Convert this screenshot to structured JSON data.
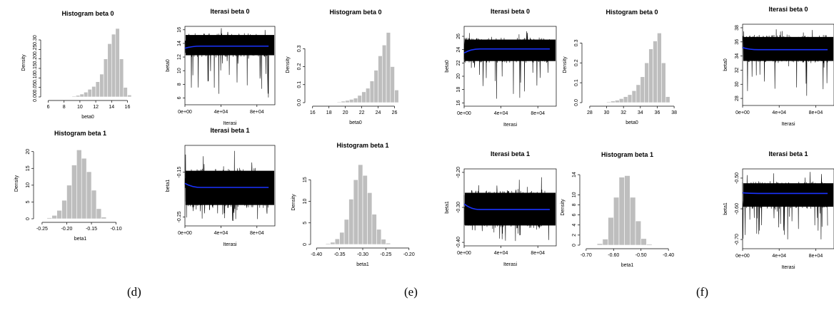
{
  "panel_labels": [
    "(d)",
    "(e)",
    "(f)"
  ],
  "chart_data": [
    {
      "group": "d",
      "kind": "hist",
      "type": "bar",
      "title": "Histogram beta 0",
      "xlabel": "beta0",
      "ylabel": "Density",
      "xlim": [
        5.5,
        16.5
      ],
      "ylim": [
        0,
        0.36
      ],
      "xticks": [
        6,
        8,
        10,
        12,
        14,
        16
      ],
      "yticks": [
        0,
        0.05,
        0.1,
        0.15,
        0.2,
        0.25,
        0.3
      ],
      "ytick_labels": [
        "0.00",
        "0.05",
        "0.10",
        "0.15",
        "0.20",
        "0.25",
        "0.30"
      ],
      "bin_width": 0.5,
      "bins": [
        8.5,
        9,
        9.5,
        10,
        10.5,
        11,
        11.5,
        12,
        12.5,
        13,
        13.5,
        14,
        14.5,
        15,
        15.5,
        16
      ],
      "values": [
        0.002,
        0.004,
        0.008,
        0.015,
        0.025,
        0.04,
        0.055,
        0.08,
        0.12,
        0.2,
        0.28,
        0.33,
        0.36,
        0.2,
        0.05,
        0.01
      ]
    },
    {
      "group": "d",
      "kind": "trace",
      "type": "line",
      "title": "Iterasi beta 0",
      "xlabel": "Iterasi",
      "ylabel": "beta0",
      "xlim": [
        0,
        100000
      ],
      "ylim": [
        5,
        16.5
      ],
      "xticks": [
        0,
        40000,
        80000
      ],
      "xtick_labels": [
        "0e+00",
        "4e+04",
        "8e+04"
      ],
      "yticks": [
        6,
        8,
        10,
        12,
        14,
        16
      ],
      "ytick_labels": [
        "6",
        "8",
        "10",
        "12",
        "14",
        "16"
      ],
      "band": [
        12,
        15.5
      ],
      "spike_low": 6,
      "spike_high": 16.3,
      "mean_start": 13.3,
      "mean": 13.6
    },
    {
      "group": "d",
      "kind": "hist",
      "type": "bar",
      "title": "Histogram beta 1",
      "xlabel": "beta1",
      "ylabel": "Density",
      "xlim": [
        -0.26,
        -0.085
      ],
      "ylim": [
        0,
        21
      ],
      "xticks": [
        -0.25,
        -0.2,
        -0.15,
        -0.1
      ],
      "xtick_labels": [
        "-0.25",
        "-0.20",
        "-0.15",
        "-0.10"
      ],
      "yticks": [
        0,
        5,
        10,
        15,
        20
      ],
      "ytick_labels": [
        "0",
        "5",
        "10",
        "15",
        "20"
      ],
      "bin_width": 0.01,
      "bins": [
        -0.24,
        -0.23,
        -0.22,
        -0.21,
        -0.2,
        -0.19,
        -0.18,
        -0.17,
        -0.16,
        -0.15,
        -0.14,
        -0.13
      ],
      "values": [
        0.3,
        1.0,
        2.5,
        5.5,
        10,
        16,
        20.5,
        18,
        14,
        8.5,
        3,
        0.5
      ]
    },
    {
      "group": "d",
      "kind": "trace",
      "type": "line",
      "title": "Iterasi beta 1",
      "xlabel": "Iterasi",
      "ylabel": "beta1",
      "xlim": [
        0,
        100000
      ],
      "ylim": [
        -0.27,
        -0.09
      ],
      "xticks": [
        0,
        40000,
        80000
      ],
      "xtick_labels": [
        "0e+00",
        "4e+04",
        "8e+04"
      ],
      "yticks": [
        -0.25,
        -0.15
      ],
      "ytick_labels": [
        "-0.25",
        "-0.15"
      ],
      "band": [
        -0.23,
        -0.14
      ],
      "spike_low": -0.26,
      "spike_high": -0.1,
      "mean_start": -0.175,
      "mean": -0.184
    },
    {
      "group": "e",
      "kind": "hist",
      "type": "bar",
      "title": "Histogram beta 0",
      "xlabel": "beta0",
      "ylabel": "Density",
      "xlim": [
        15.5,
        27
      ],
      "ylim": [
        0,
        0.42
      ],
      "xticks": [
        16,
        18,
        20,
        22,
        24,
        26
      ],
      "yticks": [
        0,
        0.1,
        0.2,
        0.3
      ],
      "ytick_labels": [
        "0.0",
        "0.1",
        "0.2",
        "0.3"
      ],
      "bin_width": 0.5,
      "bins": [
        19,
        19.5,
        20,
        20.5,
        21,
        21.5,
        22,
        22.5,
        23,
        23.5,
        24,
        24.5,
        25,
        25.5,
        26
      ],
      "values": [
        0.004,
        0.008,
        0.012,
        0.018,
        0.025,
        0.04,
        0.06,
        0.08,
        0.12,
        0.18,
        0.26,
        0.32,
        0.39,
        0.2,
        0.07
      ]
    },
    {
      "group": "e",
      "kind": "trace",
      "type": "line",
      "title": "Iterasi beta 0",
      "xlabel": "Iterasi",
      "ylabel": "beta0",
      "xlim": [
        0,
        100000
      ],
      "ylim": [
        15.5,
        27.5
      ],
      "xticks": [
        0,
        40000,
        80000
      ],
      "xtick_labels": [
        "0e+00",
        "4e+04",
        "8e+04"
      ],
      "yticks": [
        16,
        18,
        20,
        22,
        24,
        26
      ],
      "ytick_labels": [
        "16",
        "18",
        "20",
        "22",
        "24",
        "26"
      ],
      "band": [
        22,
        25.8
      ],
      "spike_low": 16.5,
      "spike_high": 26.8,
      "mean_start": 23.5,
      "mean": 24.1
    },
    {
      "group": "e",
      "kind": "hist",
      "type": "bar",
      "title": "Histogram beta 1",
      "xlabel": "beta1",
      "ylabel": "Density",
      "xlim": [
        -0.405,
        -0.195
      ],
      "ylim": [
        0,
        19.5
      ],
      "xticks": [
        -0.4,
        -0.35,
        -0.3,
        -0.25,
        -0.2
      ],
      "xtick_labels": [
        "-0.40",
        "-0.35",
        "-0.30",
        "-0.25",
        "-0.20"
      ],
      "yticks": [
        0,
        5,
        10,
        15
      ],
      "ytick_labels": [
        "0",
        "5",
        "10",
        "15"
      ],
      "bin_width": 0.01,
      "bins": [
        -0.38,
        -0.37,
        -0.36,
        -0.35,
        -0.34,
        -0.33,
        -0.32,
        -0.31,
        -0.3,
        -0.29,
        -0.28,
        -0.27,
        -0.26,
        -0.25
      ],
      "values": [
        0.2,
        0.5,
        1.3,
        2.8,
        5.8,
        10.5,
        15,
        18.5,
        16,
        12,
        7,
        3.5,
        1.2,
        0.3
      ]
    },
    {
      "group": "e",
      "kind": "trace",
      "type": "line",
      "title": "Iterasi beta 1",
      "xlabel": "Iterasi",
      "ylabel": "beta1",
      "xlim": [
        0,
        100000
      ],
      "ylim": [
        -0.41,
        -0.19
      ],
      "xticks": [
        0,
        40000,
        80000
      ],
      "xtick_labels": [
        "0e+00",
        "4e+04",
        "8e+04"
      ],
      "yticks": [
        -0.4,
        -0.3,
        -0.2
      ],
      "ytick_labels": [
        "-0.40",
        "-0.30",
        "-0.20"
      ],
      "band": [
        -0.36,
        -0.25
      ],
      "spike_low": -0.4,
      "spike_high": -0.21,
      "mean_start": -0.29,
      "mean": -0.306
    },
    {
      "group": "f",
      "kind": "hist",
      "type": "bar",
      "title": "Histogram beta 0",
      "xlabel": "beta0",
      "ylabel": "Density",
      "xlim": [
        27.5,
        38.5
      ],
      "ylim": [
        0,
        0.38
      ],
      "xticks": [
        28,
        30,
        32,
        34,
        36,
        38
      ],
      "yticks": [
        0,
        0.1,
        0.2,
        0.3
      ],
      "ytick_labels": [
        "0.0",
        "0.1",
        "0.2",
        "0.3"
      ],
      "bin_width": 0.5,
      "bins": [
        30,
        30.5,
        31,
        31.5,
        32,
        32.5,
        33,
        33.5,
        34,
        34.5,
        35,
        35.5,
        36,
        36.5,
        37
      ],
      "values": [
        0.004,
        0.008,
        0.012,
        0.02,
        0.03,
        0.04,
        0.06,
        0.09,
        0.13,
        0.2,
        0.27,
        0.31,
        0.35,
        0.2,
        0.03
      ]
    },
    {
      "group": "f",
      "kind": "trace",
      "type": "line",
      "title": "Iterasi beta 0",
      "xlabel": "Iterasi",
      "ylabel": "beta0",
      "xlim": [
        0,
        100000
      ],
      "ylim": [
        27,
        38.5
      ],
      "xticks": [
        0,
        40000,
        80000
      ],
      "xtick_labels": [
        "0e+00",
        "4e+04",
        "8e+04"
      ],
      "yticks": [
        28,
        30,
        32,
        34,
        36,
        38
      ],
      "ytick_labels": [
        "28",
        "30",
        "32",
        "34",
        "36",
        "38"
      ],
      "band": [
        33,
        37
      ],
      "spike_low": 28,
      "spike_high": 37.8,
      "mean_start": 35.2,
      "mean": 34.9
    },
    {
      "group": "f",
      "kind": "hist",
      "type": "bar",
      "title": "Histogram beta 1",
      "xlabel": "beta1",
      "ylabel": "Density",
      "xlim": [
        -0.71,
        -0.39
      ],
      "ylim": [
        0,
        15
      ],
      "xticks": [
        -0.7,
        -0.6,
        -0.5,
        -0.4
      ],
      "xtick_labels": [
        "-0.70",
        "-0.60",
        "-0.50",
        "-0.40"
      ],
      "yticks": [
        0,
        2,
        4,
        6,
        8,
        10,
        14
      ],
      "ytick_labels": [
        "0",
        "2",
        "4",
        "6",
        "8",
        "10",
        "14"
      ],
      "bin_width": 0.02,
      "bins": [
        -0.66,
        -0.64,
        -0.62,
        -0.6,
        -0.58,
        -0.56,
        -0.54,
        -0.52,
        -0.5,
        -0.48
      ],
      "values": [
        0.3,
        1.2,
        5.5,
        9.5,
        13.5,
        13.8,
        9.5,
        4.8,
        1.3,
        0.2
      ]
    },
    {
      "group": "f",
      "kind": "trace",
      "type": "line",
      "title": "Iterasi beta 1",
      "xlabel": "Iterasi",
      "ylabel": "beta1",
      "xlim": [
        0,
        100000
      ],
      "ylim": [
        -0.73,
        -0.47
      ],
      "xticks": [
        0,
        40000,
        80000
      ],
      "xtick_labels": [
        "0e+00",
        "4e+04",
        "8e+04"
      ],
      "yticks": [
        -0.7,
        -0.6,
        -0.5
      ],
      "ytick_labels": [
        "-0.70",
        "-0.60",
        "-0.50"
      ],
      "band": [
        -0.6,
        -0.51
      ],
      "spike_low": -0.7,
      "spike_high": -0.48,
      "mean_start": -0.548,
      "mean": -0.55
    }
  ]
}
